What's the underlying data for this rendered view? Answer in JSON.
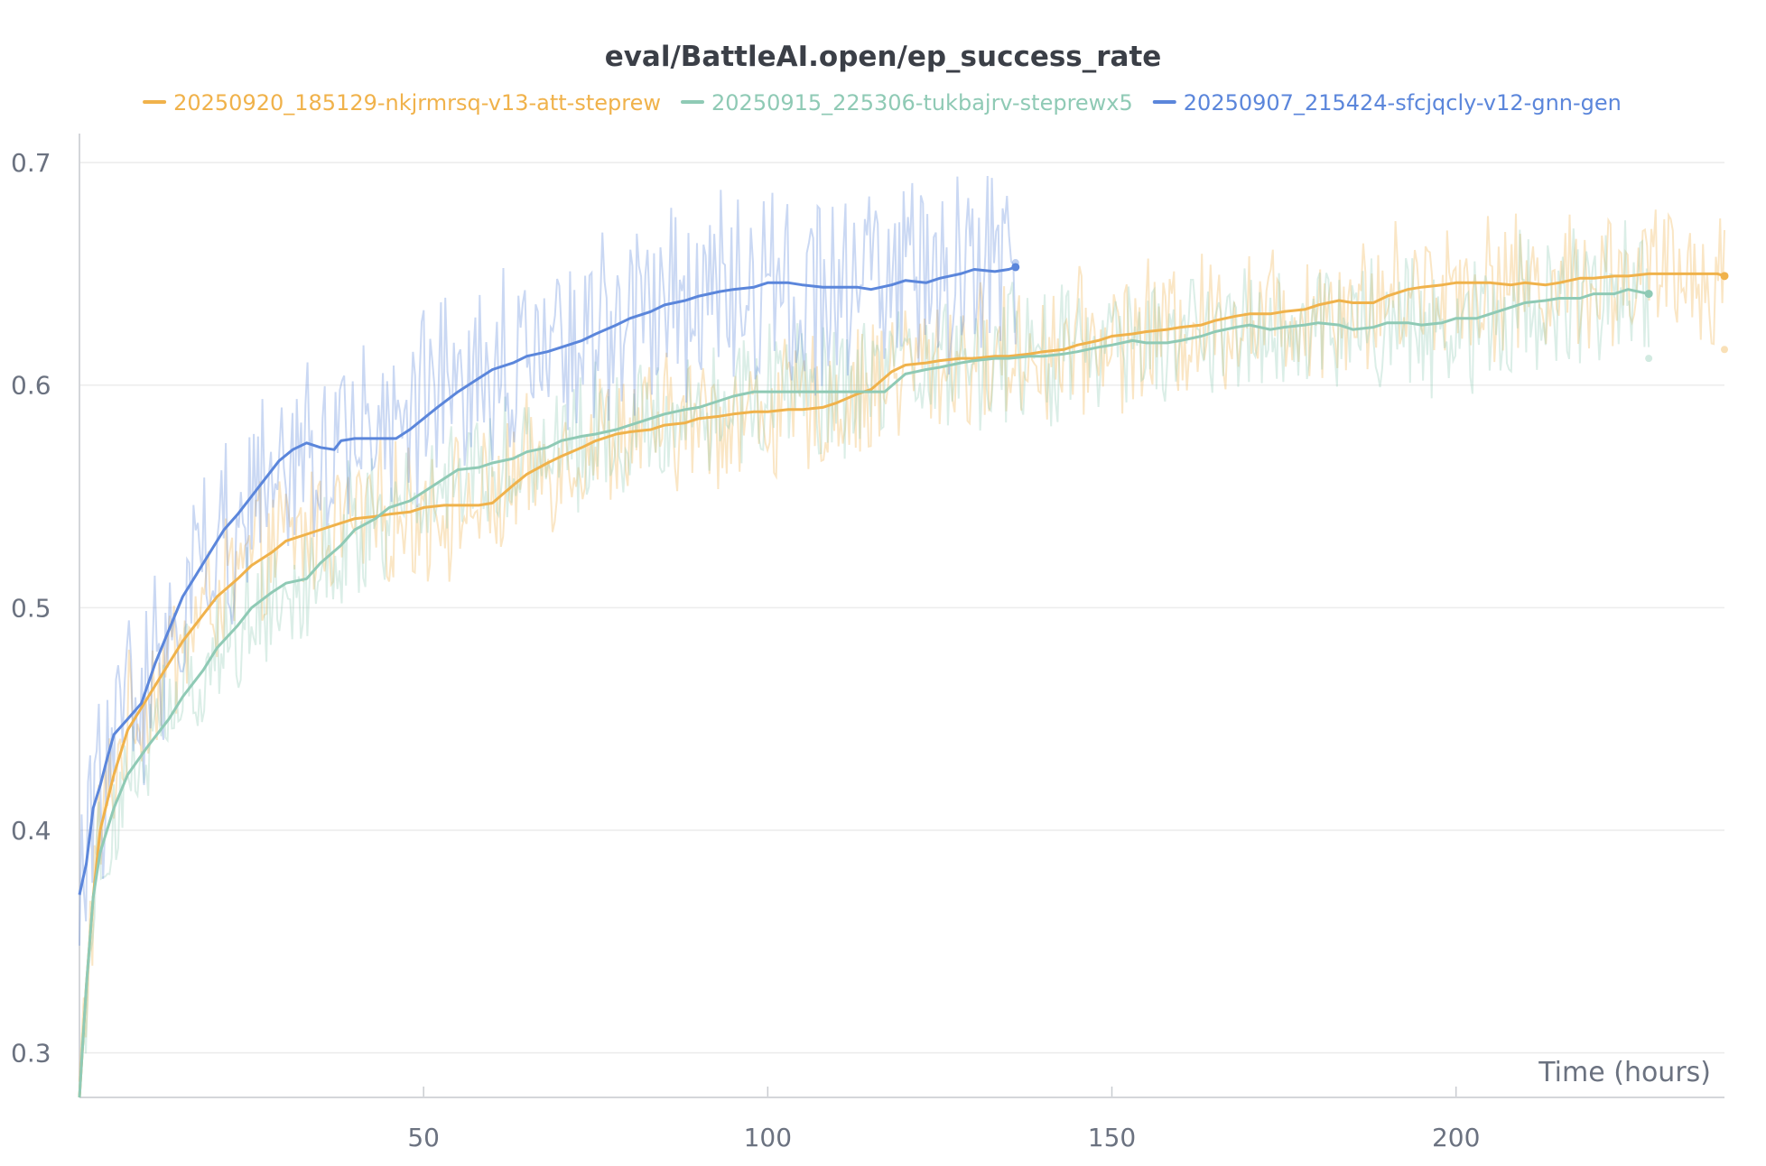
{
  "chart_data": {
    "type": "line",
    "title": "eval/BattleAI.open/ep_success_rate",
    "xlabel": "Time (hours)",
    "ylabel": "",
    "xlim": [
      0,
      239
    ],
    "ylim": [
      0.28,
      0.713
    ],
    "x_ticks": [
      50,
      100,
      150,
      200
    ],
    "y_ticks": [
      0.3,
      0.4,
      0.5,
      0.6,
      0.7
    ],
    "x_tick_labels": [
      "50",
      "100",
      "150",
      "200"
    ],
    "y_tick_labels": [
      "0.3",
      "0.4",
      "0.5",
      "0.6",
      "0.7"
    ],
    "grid": true,
    "legend_position": "top",
    "series": [
      {
        "name": "20250920_185129-nkjrmrsq-v13-att-steprew",
        "color": "#f0b24b",
        "end_raw_value": 0.616,
        "x": [
          0,
          1,
          2,
          3,
          5,
          7,
          10,
          13,
          15,
          18,
          20,
          23,
          25,
          28,
          30,
          33,
          35,
          38,
          40,
          43,
          45,
          48,
          50,
          53,
          55,
          58,
          60,
          63,
          65,
          68,
          70,
          73,
          75,
          78,
          80,
          83,
          85,
          88,
          90,
          93,
          95,
          98,
          100,
          103,
          105,
          108,
          110,
          113,
          115,
          118,
          120,
          123,
          125,
          128,
          130,
          133,
          135,
          138,
          140,
          143,
          145,
          148,
          150,
          153,
          155,
          158,
          160,
          163,
          165,
          168,
          170,
          173,
          175,
          178,
          180,
          183,
          185,
          188,
          190,
          193,
          195,
          198,
          200,
          203,
          205,
          208,
          210,
          213,
          215,
          218,
          220,
          223,
          225,
          228,
          230,
          233,
          235,
          238,
          239
        ],
        "y": [
          0.28,
          0.33,
          0.37,
          0.4,
          0.425,
          0.445,
          0.46,
          0.475,
          0.485,
          0.497,
          0.505,
          0.513,
          0.519,
          0.525,
          0.53,
          0.533,
          0.535,
          0.538,
          0.54,
          0.541,
          0.542,
          0.543,
          0.545,
          0.546,
          0.546,
          0.546,
          0.547,
          0.555,
          0.56,
          0.565,
          0.568,
          0.572,
          0.575,
          0.578,
          0.579,
          0.58,
          0.582,
          0.583,
          0.585,
          0.586,
          0.587,
          0.588,
          0.588,
          0.589,
          0.589,
          0.59,
          0.592,
          0.596,
          0.598,
          0.606,
          0.609,
          0.61,
          0.611,
          0.612,
          0.612,
          0.613,
          0.613,
          0.614,
          0.615,
          0.616,
          0.618,
          0.62,
          0.622,
          0.623,
          0.624,
          0.625,
          0.626,
          0.627,
          0.629,
          0.631,
          0.632,
          0.632,
          0.633,
          0.634,
          0.636,
          0.638,
          0.637,
          0.637,
          0.64,
          0.643,
          0.644,
          0.645,
          0.646,
          0.646,
          0.646,
          0.645,
          0.646,
          0.645,
          0.646,
          0.648,
          0.648,
          0.649,
          0.649,
          0.65,
          0.65,
          0.65,
          0.65,
          0.65,
          0.649
        ]
      },
      {
        "name": "20250915_225306-tukbajrv-steprewx5",
        "color": "#8fcab5",
        "end_raw_value": 0.612,
        "x": [
          0,
          1,
          2,
          3,
          5,
          7,
          10,
          13,
          15,
          18,
          20,
          23,
          25,
          28,
          30,
          33,
          35,
          38,
          40,
          43,
          45,
          48,
          50,
          53,
          55,
          58,
          60,
          63,
          65,
          68,
          70,
          73,
          75,
          78,
          80,
          83,
          85,
          88,
          90,
          93,
          95,
          98,
          100,
          105,
          110,
          115,
          117,
          120,
          123,
          125,
          128,
          130,
          133,
          135,
          138,
          140,
          143,
          145,
          148,
          150,
          153,
          155,
          158,
          160,
          163,
          165,
          168,
          170,
          173,
          175,
          178,
          180,
          183,
          185,
          188,
          190,
          193,
          195,
          198,
          200,
          203,
          205,
          208,
          210,
          213,
          215,
          218,
          220,
          223,
          225,
          228
        ],
        "y": [
          0.28,
          0.33,
          0.37,
          0.39,
          0.41,
          0.425,
          0.438,
          0.45,
          0.46,
          0.472,
          0.482,
          0.492,
          0.5,
          0.507,
          0.511,
          0.513,
          0.52,
          0.528,
          0.535,
          0.54,
          0.545,
          0.548,
          0.552,
          0.558,
          0.562,
          0.563,
          0.565,
          0.567,
          0.57,
          0.572,
          0.575,
          0.577,
          0.578,
          0.58,
          0.582,
          0.585,
          0.587,
          0.589,
          0.59,
          0.593,
          0.595,
          0.597,
          0.597,
          0.597,
          0.597,
          0.597,
          0.597,
          0.605,
          0.607,
          0.608,
          0.61,
          0.611,
          0.612,
          0.612,
          0.613,
          0.613,
          0.614,
          0.615,
          0.617,
          0.618,
          0.62,
          0.619,
          0.619,
          0.62,
          0.622,
          0.624,
          0.626,
          0.627,
          0.625,
          0.626,
          0.627,
          0.628,
          0.627,
          0.625,
          0.626,
          0.628,
          0.628,
          0.627,
          0.628,
          0.63,
          0.63,
          0.632,
          0.635,
          0.637,
          0.638,
          0.639,
          0.639,
          0.641,
          0.641,
          0.643,
          0.641
        ]
      },
      {
        "name": "20250907_215424-sfcjqcly-v12-gnn-gen",
        "color": "#5b86db",
        "end_raw_value": 0.655,
        "x": [
          0,
          1,
          2,
          3,
          4,
          5,
          7,
          9,
          11,
          13,
          15,
          17,
          19,
          21,
          23,
          25,
          27,
          29,
          31,
          33,
          35,
          37,
          38,
          40,
          43,
          45,
          46,
          48,
          50,
          52,
          55,
          58,
          60,
          63,
          65,
          68,
          70,
          73,
          75,
          78,
          80,
          83,
          85,
          88,
          90,
          93,
          95,
          98,
          100,
          103,
          105,
          108,
          110,
          113,
          115,
          118,
          120,
          123,
          125,
          128,
          130,
          133,
          135,
          136
        ],
        "y": [
          0.371,
          0.385,
          0.41,
          0.42,
          0.432,
          0.443,
          0.45,
          0.457,
          0.475,
          0.49,
          0.505,
          0.515,
          0.525,
          0.535,
          0.542,
          0.55,
          0.558,
          0.566,
          0.571,
          0.574,
          0.572,
          0.571,
          0.575,
          0.576,
          0.576,
          0.576,
          0.576,
          0.58,
          0.585,
          0.59,
          0.597,
          0.603,
          0.607,
          0.61,
          0.613,
          0.615,
          0.617,
          0.62,
          0.623,
          0.627,
          0.63,
          0.633,
          0.636,
          0.638,
          0.64,
          0.642,
          0.643,
          0.644,
          0.646,
          0.646,
          0.645,
          0.644,
          0.644,
          0.644,
          0.643,
          0.645,
          0.647,
          0.646,
          0.648,
          0.65,
          0.652,
          0.651,
          0.652,
          0.653
        ]
      }
    ]
  }
}
